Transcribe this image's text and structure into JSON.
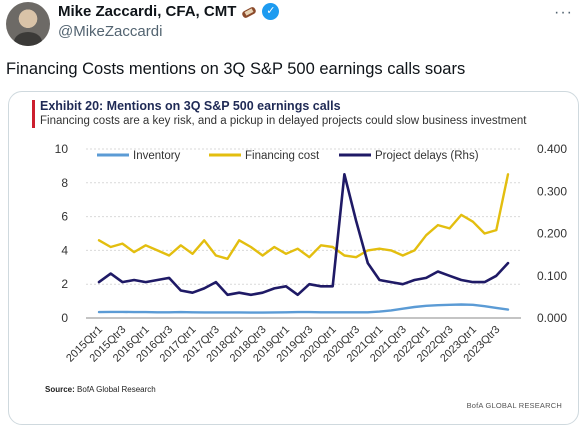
{
  "tweet": {
    "author_name": "Mike Zaccardi, CFA, CMT",
    "author_handle": "@MikeZaccardi",
    "text": "Financing Costs mentions on 3Q S&P 500 earnings calls soars",
    "icons": [
      "avatar",
      "scroll-emoji-icon",
      "verified-icon",
      "more-icon"
    ]
  },
  "exhibit": {
    "title": "Exhibit 20: Mentions on 3Q S&P 500 earnings calls",
    "subtitle": "Financing costs are a key risk, and a pickup in delayed projects could slow business investment",
    "source_prefix": "Source:",
    "source_text": "BofA Global Research",
    "brand": "BofA GLOBAL RESEARCH"
  },
  "chart_data": {
    "type": "line",
    "title": "Exhibit 20: Mentions on 3Q S&P 500 earnings calls",
    "subtitle": "Financing costs are a key risk, and a pickup in delayed projects could slow business investment",
    "xlabel": "",
    "ylabel": "",
    "ylim": [
      0,
      10
    ],
    "y2lim": [
      0,
      0.4
    ],
    "yticks": [
      "0",
      "2",
      "4",
      "6",
      "8",
      "10"
    ],
    "y2ticks": [
      "0.000",
      "0.100",
      "0.200",
      "0.300",
      "0.400"
    ],
    "grid": true,
    "legend_position": "top",
    "xtick_labels": [
      "2015Qtr1",
      "2015Qtr3",
      "2016Qtr1",
      "2016Qtr3",
      "2017Qtr1",
      "2017Qtr3",
      "2018Qtr1",
      "2018Qtr3",
      "2019Qtr1",
      "2019Qtr3",
      "2020Qtr1",
      "2020Qtr3",
      "2021Qtr1",
      "2021Qtr3",
      "2022Qtr1",
      "2022Qtr3",
      "2023Qtr1",
      "2023Qtr3"
    ],
    "x": [
      "2015Q1",
      "2015Q2",
      "2015Q3",
      "2015Q4",
      "2016Q1",
      "2016Q2",
      "2016Q3",
      "2016Q4",
      "2017Q1",
      "2017Q2",
      "2017Q3",
      "2017Q4",
      "2018Q1",
      "2018Q2",
      "2018Q3",
      "2018Q4",
      "2019Q1",
      "2019Q2",
      "2019Q3",
      "2019Q4",
      "2020Q1",
      "2020Q2",
      "2020Q3",
      "2020Q4",
      "2021Q1",
      "2021Q2",
      "2021Q3",
      "2021Q4",
      "2022Q1",
      "2022Q2",
      "2022Q3",
      "2022Q4",
      "2023Q1",
      "2023Q2",
      "2023Q3",
      "2023Q4"
    ],
    "series": [
      {
        "name": "Inventory",
        "axis": "left",
        "color": "#5b9bd5",
        "values": [
          0.35,
          0.36,
          0.36,
          0.35,
          0.35,
          0.34,
          0.34,
          0.35,
          0.34,
          0.33,
          0.33,
          0.33,
          0.33,
          0.32,
          0.32,
          0.33,
          0.34,
          0.35,
          0.35,
          0.34,
          0.34,
          0.34,
          0.34,
          0.34,
          0.38,
          0.45,
          0.55,
          0.65,
          0.72,
          0.76,
          0.78,
          0.8,
          0.78,
          0.7,
          0.6,
          0.5
        ]
      },
      {
        "name": "Financing cost",
        "axis": "left",
        "color": "#e3be0f",
        "values": [
          4.6,
          4.2,
          4.4,
          3.9,
          4.3,
          4.0,
          3.7,
          4.3,
          3.8,
          4.6,
          3.7,
          3.5,
          4.6,
          4.2,
          3.7,
          4.2,
          3.8,
          4.1,
          3.6,
          4.3,
          4.2,
          3.7,
          3.6,
          4.0,
          4.1,
          4.0,
          3.7,
          4.0,
          4.9,
          5.5,
          5.3,
          6.1,
          5.7,
          5.0,
          5.2,
          8.5
        ]
      },
      {
        "name": "Project delays (Rhs)",
        "axis": "right",
        "color": "#1f1a66",
        "values": [
          0.085,
          0.105,
          0.085,
          0.09,
          0.085,
          0.09,
          0.095,
          0.065,
          0.06,
          0.07,
          0.085,
          0.055,
          0.06,
          0.055,
          0.06,
          0.07,
          0.075,
          0.055,
          0.08,
          0.075,
          0.075,
          0.34,
          0.23,
          0.13,
          0.09,
          0.085,
          0.08,
          0.09,
          0.095,
          0.11,
          0.1,
          0.09,
          0.085,
          0.085,
          0.1,
          0.13
        ]
      }
    ]
  }
}
